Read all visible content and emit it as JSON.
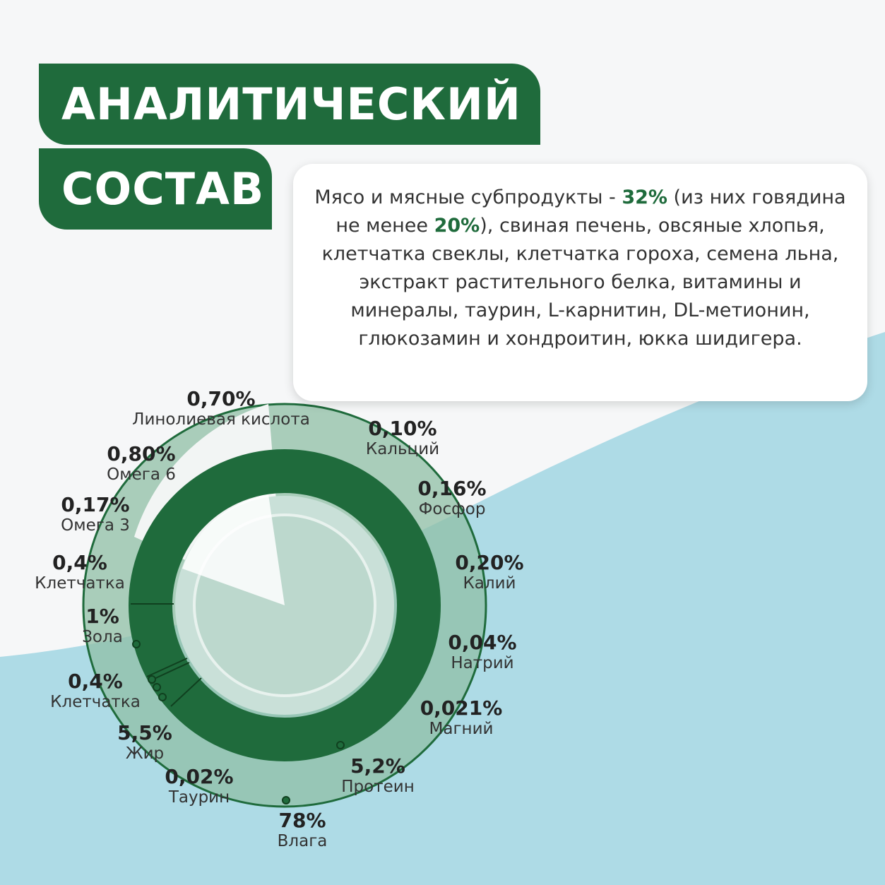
{
  "header": {
    "title_line1": "АНАЛИТИЧЕСКИЙ",
    "title_line2": "СОСТАВ"
  },
  "description": {
    "parts": [
      {
        "text": "Мясо и мясные субпродукты - ",
        "bold": false
      },
      {
        "text": "32%",
        "bold": true
      },
      {
        "text": " (из них говядина не менее ",
        "bold": false
      },
      {
        "text": "20%",
        "bold": true
      },
      {
        "text": "), свиная печень, овсяные хлопья, клетчатка свеклы, клетчатка гороха, семена льна, экстракт растительного белка, витамины и минералы, таурин, L-карнитин, DL-метионин, глюкозамин и хондроитин, юкка шидигера.",
        "bold": false
      }
    ]
  },
  "nutrients": [
    {
      "value": "0,70%",
      "name": "Линолиевая кислота"
    },
    {
      "value": "0,10%",
      "name": "Кальций"
    },
    {
      "value": "0,80%",
      "name": "Омега 6"
    },
    {
      "value": "0,16%",
      "name": "Фосфор"
    },
    {
      "value": "0,17%",
      "name": "Омега 3"
    },
    {
      "value": "0,20%",
      "name": "Калий"
    },
    {
      "value": "0,4%",
      "name": "Клетчатка"
    },
    {
      "value": "1%",
      "name": "Зола"
    },
    {
      "value": "0,04%",
      "name": "Натрий"
    },
    {
      "value": "0,4%",
      "name": "Клетчатка"
    },
    {
      "value": "0,021%",
      "name": "Магний"
    },
    {
      "value": "5,5%",
      "name": "Жир"
    },
    {
      "value": "5,2%",
      "name": "Протеин"
    },
    {
      "value": "0,02%",
      "name": "Таурин"
    },
    {
      "value": "78%",
      "name": "Влага"
    }
  ]
}
